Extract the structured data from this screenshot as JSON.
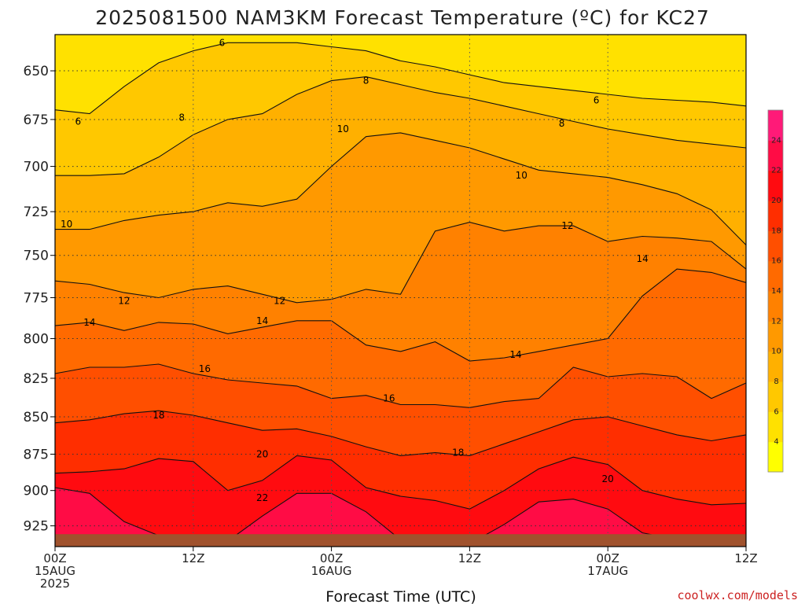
{
  "chart_data": {
    "type": "contour",
    "title": "2025081500 NAM3KM Forecast Temperature (ºC) for KC27",
    "xlabel": "Forecast Time (UTC)",
    "ylabel": "",
    "credit": "coolwx.com/models",
    "x_ticks": [
      {
        "hour": 0,
        "lines": [
          "00Z",
          "15AUG",
          "2025"
        ]
      },
      {
        "hour": 12,
        "lines": [
          "12Z"
        ]
      },
      {
        "hour": 24,
        "lines": [
          "00Z",
          "16AUG"
        ]
      },
      {
        "hour": 36,
        "lines": [
          "12Z"
        ]
      },
      {
        "hour": 48,
        "lines": [
          "00Z",
          "17AUG"
        ]
      },
      {
        "hour": 60,
        "lines": [
          "12Z"
        ]
      }
    ],
    "xlim": [
      0,
      60
    ],
    "y_ticks": [
      650,
      675,
      700,
      725,
      750,
      775,
      800,
      825,
      850,
      875,
      900,
      925
    ],
    "ylim": [
      632,
      940
    ],
    "y_scale": "log-pressure",
    "grid": true,
    "colorbar": {
      "levels": [
        2,
        4,
        6,
        8,
        10,
        12,
        14,
        16,
        18,
        20,
        22,
        24,
        26
      ],
      "tick_labels": [
        "4",
        "6",
        "8",
        "10",
        "12",
        "14",
        "16",
        "18",
        "20",
        "22",
        "24"
      ],
      "colors": [
        "#ffff00",
        "#ffe100",
        "#ffc800",
        "#ffb000",
        "#ff9900",
        "#ff8100",
        "#ff6a00",
        "#ff4f00",
        "#ff2e00",
        "#ff0b10",
        "#ff0c45",
        "#ff1a78"
      ]
    },
    "isotherms": [
      {
        "value": 6,
        "labels": [
          {
            "hour": 14.5,
            "p": 636
          },
          {
            "hour": 2,
            "p": 676
          },
          {
            "hour": 47,
            "p": 665
          }
        ]
      },
      {
        "value": 8,
        "labels": [
          {
            "hour": 27,
            "p": 655
          },
          {
            "hour": 11,
            "p": 674
          },
          {
            "hour": 44,
            "p": 677
          }
        ]
      },
      {
        "value": 10,
        "labels": [
          {
            "hour": 1,
            "p": 732
          },
          {
            "hour": 25,
            "p": 680
          },
          {
            "hour": 40.5,
            "p": 705
          }
        ]
      },
      {
        "value": 12,
        "labels": [
          {
            "hour": 6,
            "p": 777
          },
          {
            "hour": 19.5,
            "p": 777
          },
          {
            "hour": 44.5,
            "p": 733
          }
        ]
      },
      {
        "value": 14,
        "labels": [
          {
            "hour": 3,
            "p": 790
          },
          {
            "hour": 18,
            "p": 789
          },
          {
            "hour": 40,
            "p": 810
          },
          {
            "hour": 51,
            "p": 752
          }
        ]
      },
      {
        "value": 16,
        "labels": [
          {
            "hour": 13,
            "p": 819
          },
          {
            "hour": 29,
            "p": 838
          }
        ]
      },
      {
        "value": 18,
        "labels": [
          {
            "hour": 9,
            "p": 849
          },
          {
            "hour": 35,
            "p": 874
          }
        ]
      },
      {
        "value": 20,
        "labels": [
          {
            "hour": 18,
            "p": 875
          },
          {
            "hour": 48,
            "p": 892
          }
        ]
      },
      {
        "value": 22,
        "labels": [
          {
            "hour": 18,
            "p": 905
          }
        ]
      }
    ],
    "boundaries": [
      {
        "value": 6,
        "p": [
          670,
          672,
          658,
          646,
          640,
          636,
          636,
          636,
          638,
          640,
          645,
          648,
          652,
          656,
          658,
          660,
          662,
          664,
          665,
          666,
          668
        ]
      },
      {
        "value": 8,
        "p": [
          705,
          705,
          704,
          695,
          683,
          675,
          672,
          662,
          655,
          653,
          657,
          661,
          664,
          668,
          672,
          676,
          680,
          683,
          686,
          688,
          690
        ]
      },
      {
        "value": 10,
        "p": [
          735,
          735,
          730,
          727,
          725,
          720,
          722,
          718,
          700,
          684,
          682,
          686,
          690,
          696,
          702,
          704,
          706,
          710,
          715,
          724,
          744
        ]
      },
      {
        "value": 12,
        "p": [
          765,
          767,
          772,
          775,
          770,
          768,
          773,
          778,
          776,
          770,
          773,
          736,
          731,
          736,
          733,
          733,
          742,
          739,
          740,
          742,
          758
        ]
      },
      {
        "value": 14,
        "p": [
          792,
          790,
          795,
          790,
          791,
          797,
          793,
          789,
          789,
          804,
          808,
          802,
          814,
          812,
          808,
          804,
          800,
          774,
          758,
          760,
          766
        ]
      },
      {
        "value": 16,
        "p": [
          822,
          818,
          818,
          816,
          822,
          826,
          828,
          830,
          838,
          836,
          842,
          842,
          844,
          840,
          838,
          818,
          824,
          822,
          824,
          838,
          828
        ]
      },
      {
        "value": 18,
        "p": [
          854,
          852,
          848,
          846,
          849,
          854,
          859,
          858,
          863,
          870,
          876,
          874,
          876,
          868,
          860,
          852,
          850,
          856,
          862,
          866,
          862
        ]
      },
      {
        "value": 20,
        "p": [
          888,
          887,
          885,
          878,
          880,
          900,
          893,
          876,
          879,
          898,
          904,
          907,
          913,
          900,
          885,
          877,
          882,
          900,
          906,
          910,
          909
        ]
      },
      {
        "value": 22,
        "p": [
          898,
          902,
          922,
          932,
          934,
          936,
          918,
          902,
          902,
          915,
          935,
          936,
          938,
          924,
          908,
          906,
          913,
          930,
          935,
          936,
          936
        ]
      },
      {
        "value": 24,
        "p": [
          940,
          940,
          940,
          940,
          940,
          940,
          940,
          940,
          940,
          940,
          940,
          940,
          940,
          940,
          940,
          940,
          940,
          940,
          940,
          940,
          940
        ]
      }
    ],
    "ground": {
      "p_top": 931,
      "color": "#a0522d"
    }
  }
}
